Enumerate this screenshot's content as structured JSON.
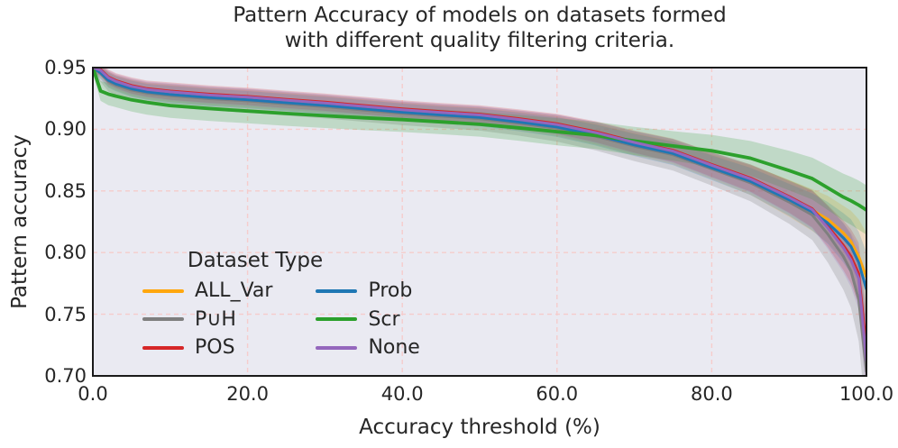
{
  "title": {
    "line1": "Pattern Accuracy of models on datasets formed",
    "line2": "with different quality filtering criteria."
  },
  "axes": {
    "x_label": "Accuracy threshold (%)",
    "y_label": "Pattern accuracy",
    "x_ticks": [
      "0.0",
      "20.0",
      "40.0",
      "60.0",
      "80.0",
      "100.0"
    ],
    "y_ticks": [
      "0.95",
      "0.90",
      "0.85",
      "0.80",
      "0.75",
      "0.70"
    ]
  },
  "legend": {
    "title": "Dataset Type",
    "columns": [
      [
        {
          "label": "ALL_Var",
          "color": "#ffa70e"
        },
        {
          "label": "P∪H",
          "color": "#7f7f7f"
        },
        {
          "label": "POS",
          "color": "#d62728"
        }
      ],
      [
        {
          "label": "Prob",
          "color": "#1f77b4"
        },
        {
          "label": "Scr",
          "color": "#2ca02c"
        },
        {
          "label": "None",
          "color": "#9467bd"
        }
      ]
    ]
  },
  "colors": {
    "plot_background": "#eaeaf2",
    "figure_background": "#ffffff",
    "grid": "#f6cccc",
    "spine": "#1a1a1a",
    "text": "#262626"
  },
  "chart_data": {
    "type": "line",
    "title": "Pattern Accuracy of models on datasets formed with different quality filtering criteria.",
    "xlabel": "Accuracy threshold (%)",
    "ylabel": "Pattern accuracy",
    "xlim": [
      0,
      100
    ],
    "ylim": [
      0.7,
      0.95
    ],
    "x_tick_values": [
      0,
      20,
      40,
      60,
      80,
      100
    ],
    "y_tick_values": [
      0.95,
      0.9,
      0.85,
      0.8,
      0.75,
      0.7
    ],
    "grid": {
      "style": "dashed",
      "x_values": [
        20,
        40,
        60,
        80
      ],
      "y_values": [
        0.9,
        0.85,
        0.8,
        0.75
      ]
    },
    "legend_position": "lower left",
    "x": [
      0,
      1,
      2,
      3,
      5,
      7,
      10,
      15,
      20,
      25,
      30,
      35,
      40,
      45,
      50,
      55,
      60,
      65,
      70,
      75,
      80,
      85,
      90,
      93,
      95,
      97,
      98,
      99,
      100
    ],
    "series": [
      {
        "name": "ALL_Var",
        "color": "#ffa70e",
        "band_opacity": 0.2,
        "line_width": 3,
        "y": [
          0.95,
          0.9465,
          0.9405,
          0.9375,
          0.9335,
          0.931,
          0.929,
          0.9265,
          0.9247,
          0.9223,
          0.92,
          0.9173,
          0.9145,
          0.9123,
          0.9103,
          0.9067,
          0.9025,
          0.896,
          0.888,
          0.881,
          0.8695,
          0.8588,
          0.844,
          0.8345,
          0.827,
          0.816,
          0.809,
          0.797,
          0.78
        ],
        "band": [
          0.004,
          0.005,
          0.006,
          0.006,
          0.0065,
          0.0065,
          0.007,
          0.007,
          0.007,
          0.007,
          0.007,
          0.007,
          0.007,
          0.007,
          0.0072,
          0.0075,
          0.008,
          0.0085,
          0.009,
          0.0095,
          0.01,
          0.012,
          0.015,
          0.017,
          0.019,
          0.022,
          0.025,
          0.03,
          0.036
        ]
      },
      {
        "name": "P∪H",
        "color": "#7f7f7f",
        "band_opacity": 0.26,
        "line_width": 3,
        "y": [
          0.95,
          0.9452,
          0.9388,
          0.9358,
          0.9318,
          0.9293,
          0.9273,
          0.9248,
          0.923,
          0.9206,
          0.9183,
          0.9156,
          0.9128,
          0.9106,
          0.9086,
          0.905,
          0.9008,
          0.8943,
          0.8863,
          0.8793,
          0.8678,
          0.8566,
          0.841,
          0.8305,
          0.815,
          0.797,
          0.785,
          0.762,
          0.703
        ],
        "band": [
          0.0054,
          0.0068,
          0.0081,
          0.0081,
          0.0088,
          0.0088,
          0.0095,
          0.0095,
          0.0095,
          0.0095,
          0.0095,
          0.0095,
          0.0095,
          0.0095,
          0.0097,
          0.0101,
          0.0108,
          0.0115,
          0.0122,
          0.0128,
          0.0135,
          0.0149,
          0.0176,
          0.0203,
          0.023,
          0.027,
          0.0297,
          0.0338,
          0.0405
        ]
      },
      {
        "name": "POS",
        "color": "#d62728",
        "band_opacity": 0.2,
        "line_width": 3,
        "y": [
          0.95,
          0.9485,
          0.9425,
          0.9395,
          0.9355,
          0.933,
          0.931,
          0.9285,
          0.9267,
          0.9243,
          0.922,
          0.9193,
          0.9165,
          0.9143,
          0.9123,
          0.9087,
          0.9045,
          0.898,
          0.89,
          0.883,
          0.8715,
          0.8605,
          0.8455,
          0.8355,
          0.8215,
          0.806,
          0.797,
          0.783,
          0.722
        ],
        "band": [
          0.004,
          0.005,
          0.006,
          0.006,
          0.0065,
          0.0065,
          0.007,
          0.007,
          0.007,
          0.007,
          0.007,
          0.007,
          0.007,
          0.007,
          0.0072,
          0.0075,
          0.008,
          0.0085,
          0.009,
          0.0095,
          0.01,
          0.011,
          0.013,
          0.015,
          0.017,
          0.02,
          0.022,
          0.025,
          0.03
        ]
      },
      {
        "name": "Prob",
        "color": "#1f77b4",
        "band_opacity": 0.2,
        "line_width": 3,
        "y": [
          0.95,
          0.9458,
          0.9398,
          0.9368,
          0.9328,
          0.9303,
          0.9283,
          0.9258,
          0.924,
          0.9216,
          0.9193,
          0.9166,
          0.9138,
          0.9116,
          0.9096,
          0.906,
          0.9018,
          0.8953,
          0.8873,
          0.8803,
          0.8688,
          0.8578,
          0.8428,
          0.833,
          0.824,
          0.812,
          0.805,
          0.792,
          0.77
        ],
        "band": [
          0.004,
          0.005,
          0.006,
          0.006,
          0.0065,
          0.0065,
          0.007,
          0.007,
          0.007,
          0.007,
          0.007,
          0.007,
          0.007,
          0.007,
          0.0072,
          0.0075,
          0.008,
          0.0085,
          0.009,
          0.0095,
          0.01,
          0.011,
          0.013,
          0.015,
          0.017,
          0.02,
          0.022,
          0.025,
          0.03
        ]
      },
      {
        "name": "Scr",
        "color": "#2ca02c",
        "band_opacity": 0.22,
        "line_width": 3.8,
        "y": [
          0.95,
          0.931,
          0.9285,
          0.9268,
          0.9238,
          0.9218,
          0.9192,
          0.9168,
          0.9148,
          0.9128,
          0.911,
          0.9093,
          0.9078,
          0.906,
          0.904,
          0.9012,
          0.898,
          0.895,
          0.8905,
          0.8865,
          0.8825,
          0.8765,
          0.8665,
          0.86,
          0.8525,
          0.845,
          0.842,
          0.8385,
          0.8345
        ],
        "band": [
          0.005,
          0.008,
          0.009,
          0.009,
          0.0095,
          0.01,
          0.01,
          0.01,
          0.01,
          0.01,
          0.01,
          0.01,
          0.01,
          0.01,
          0.01,
          0.0105,
          0.011,
          0.011,
          0.0115,
          0.012,
          0.013,
          0.014,
          0.016,
          0.017,
          0.018,
          0.019,
          0.0195,
          0.02,
          0.02
        ]
      },
      {
        "name": "None",
        "color": "#9467bd",
        "band_opacity": 0.2,
        "line_width": 3,
        "y": [
          0.95,
          0.9478,
          0.9418,
          0.9388,
          0.9348,
          0.9323,
          0.9303,
          0.9278,
          0.926,
          0.9236,
          0.9213,
          0.9186,
          0.9158,
          0.9136,
          0.9116,
          0.908,
          0.9038,
          0.8973,
          0.8893,
          0.8823,
          0.8708,
          0.8598,
          0.8448,
          0.8348,
          0.82,
          0.804,
          0.794,
          0.779,
          0.712
        ],
        "band": [
          0.004,
          0.005,
          0.006,
          0.006,
          0.0065,
          0.0065,
          0.007,
          0.007,
          0.007,
          0.007,
          0.007,
          0.007,
          0.007,
          0.007,
          0.0072,
          0.0075,
          0.008,
          0.0085,
          0.009,
          0.0095,
          0.01,
          0.011,
          0.013,
          0.015,
          0.017,
          0.02,
          0.022,
          0.025,
          0.03
        ]
      }
    ]
  }
}
